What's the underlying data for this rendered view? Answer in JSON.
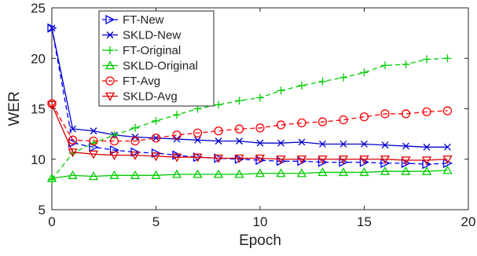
{
  "chart_data": {
    "type": "line",
    "xlabel": "Epoch",
    "ylabel": "WER",
    "xlim": [
      0,
      20
    ],
    "ylim": [
      5,
      25
    ],
    "xticks": [
      0,
      5,
      10,
      15,
      20
    ],
    "yticks": [
      5,
      10,
      15,
      20,
      25
    ],
    "x": [
      0,
      1,
      2,
      3,
      4,
      5,
      6,
      7,
      8,
      9,
      10,
      11,
      12,
      13,
      14,
      15,
      16,
      17,
      18,
      19
    ],
    "legend_position": "top-left",
    "grid": false,
    "series": [
      {
        "name": "FT-New",
        "color": "#0000ff",
        "marker": "triangle-right",
        "line": "dashed",
        "values": [
          23.0,
          11.6,
          11.2,
          10.9,
          10.7,
          10.6,
          10.4,
          10.2,
          10.1,
          10.0,
          9.9,
          9.8,
          9.8,
          9.7,
          9.7,
          9.7,
          9.6,
          9.6,
          9.5,
          9.6
        ]
      },
      {
        "name": "SKLD-New",
        "color": "#0000cc",
        "marker": "x",
        "line": "solid",
        "values": [
          23.0,
          13.0,
          12.8,
          12.4,
          12.2,
          12.1,
          12.0,
          11.9,
          11.8,
          11.8,
          11.6,
          11.6,
          11.7,
          11.5,
          11.5,
          11.5,
          11.4,
          11.3,
          11.2,
          11.2
        ]
      },
      {
        "name": "FT-Original",
        "color": "#00cc00",
        "marker": "plus",
        "line": "dashed",
        "values": [
          8.0,
          10.6,
          11.6,
          12.4,
          13.1,
          13.8,
          14.4,
          15.0,
          15.4,
          15.8,
          16.1,
          16.8,
          17.3,
          17.7,
          18.1,
          18.6,
          19.3,
          19.4,
          19.9,
          20.0
        ]
      },
      {
        "name": "SKLD-Original",
        "color": "#00cc00",
        "marker": "triangle-up",
        "line": "solid",
        "values": [
          8.1,
          8.4,
          8.3,
          8.4,
          8.4,
          8.4,
          8.5,
          8.5,
          8.5,
          8.5,
          8.6,
          8.6,
          8.6,
          8.7,
          8.7,
          8.7,
          8.8,
          8.8,
          8.8,
          8.9
        ]
      },
      {
        "name": "FT-Avg",
        "color": "#ff0000",
        "marker": "circle",
        "line": "dashed",
        "values": [
          15.5,
          11.9,
          11.8,
          11.8,
          11.8,
          12.1,
          12.4,
          12.6,
          12.8,
          13.0,
          13.1,
          13.4,
          13.6,
          13.7,
          13.9,
          14.2,
          14.5,
          14.5,
          14.7,
          14.8
        ]
      },
      {
        "name": "SKLD-Avg",
        "color": "#dd0000",
        "marker": "triangle-down",
        "line": "solid",
        "values": [
          15.4,
          10.7,
          10.5,
          10.4,
          10.4,
          10.3,
          10.2,
          10.2,
          10.1,
          10.1,
          10.1,
          10.0,
          10.0,
          10.0,
          10.0,
          10.0,
          10.0,
          9.9,
          9.9,
          10.0
        ]
      }
    ]
  }
}
